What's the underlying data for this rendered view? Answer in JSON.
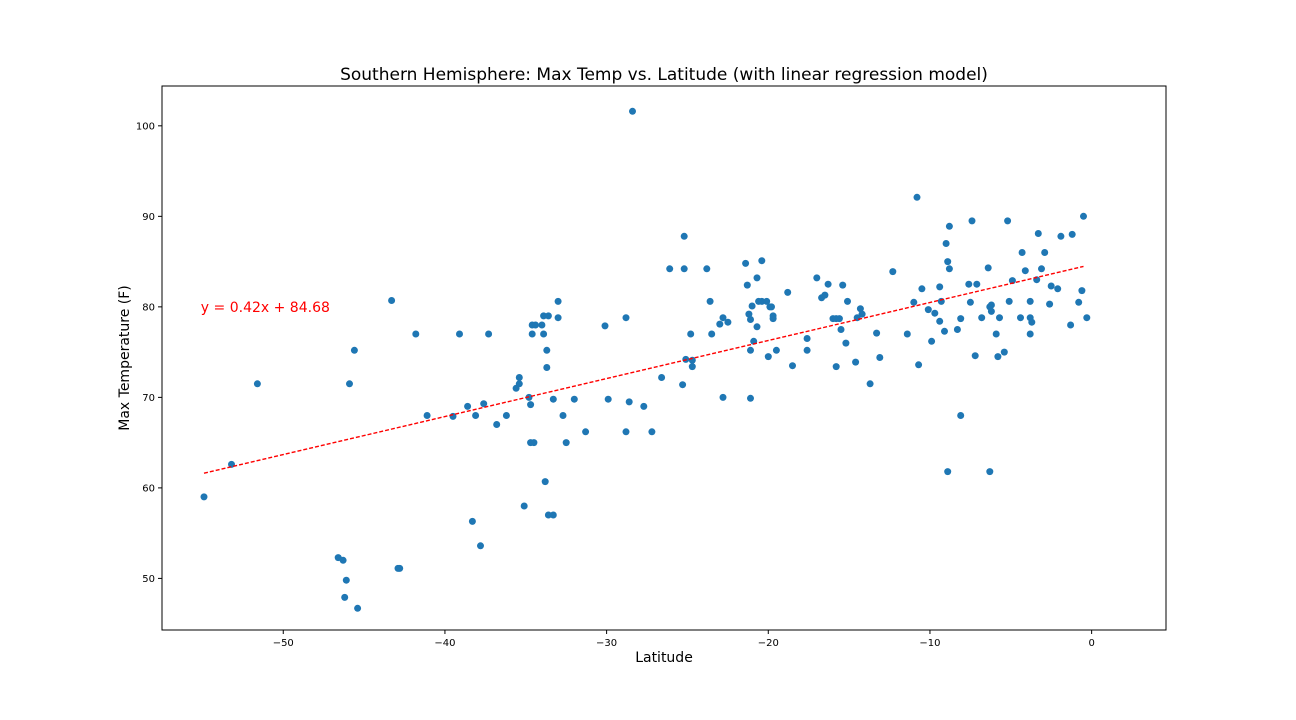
{
  "chart_data": {
    "type": "scatter",
    "title": "Southern Hemisphere:  Max Temp vs. Latitude (with linear regression model)",
    "xlabel": "Latitude",
    "ylabel": "Max Temperature (F)",
    "xlim": [
      -57.5,
      4.6
    ],
    "ylim": [
      44.3,
      104.4
    ],
    "xticks": [
      -50,
      -40,
      -30,
      -20,
      -10,
      0
    ],
    "yticks": [
      50,
      60,
      70,
      80,
      90,
      100
    ],
    "grid": false,
    "marker_color": "#1f77b4",
    "annotation": {
      "text": "y = 0.42x + 84.68",
      "color": "#ff0000",
      "x": -55.1,
      "y": 80.0
    },
    "regression": {
      "slope": 0.42,
      "intercept": 84.68,
      "x_range": [
        -54.9,
        -0.5
      ],
      "color": "#ff0000",
      "style": "dashed"
    },
    "points": [
      [
        -54.9,
        59.0
      ],
      [
        -53.2,
        62.6
      ],
      [
        -51.6,
        71.5
      ],
      [
        -46.6,
        52.3
      ],
      [
        -46.3,
        52.0
      ],
      [
        -46.2,
        47.9
      ],
      [
        -46.1,
        49.8
      ],
      [
        -45.9,
        71.5
      ],
      [
        -45.6,
        75.2
      ],
      [
        -45.4,
        46.7
      ],
      [
        -43.3,
        80.7
      ],
      [
        -42.9,
        51.1
      ],
      [
        -42.8,
        51.1
      ],
      [
        -41.8,
        77.0
      ],
      [
        -41.1,
        68.0
      ],
      [
        -39.5,
        67.9
      ],
      [
        -39.1,
        77.0
      ],
      [
        -38.6,
        69.0
      ],
      [
        -38.3,
        56.3
      ],
      [
        -38.1,
        68.0
      ],
      [
        -37.8,
        53.6
      ],
      [
        -37.6,
        69.3
      ],
      [
        -37.3,
        77.0
      ],
      [
        -36.8,
        67.0
      ],
      [
        -36.2,
        68.0
      ],
      [
        -35.6,
        71.0
      ],
      [
        -35.4,
        72.2
      ],
      [
        -35.4,
        71.5
      ],
      [
        -35.1,
        58.0
      ],
      [
        -34.8,
        70.0
      ],
      [
        -34.7,
        65.0
      ],
      [
        -34.7,
        69.2
      ],
      [
        -34.6,
        78.0
      ],
      [
        -34.6,
        77.0
      ],
      [
        -34.5,
        65.0
      ],
      [
        -34.4,
        78.0
      ],
      [
        -34.0,
        78.0
      ],
      [
        -33.9,
        79.0
      ],
      [
        -33.9,
        77.0
      ],
      [
        -33.8,
        60.7
      ],
      [
        -33.7,
        75.2
      ],
      [
        -33.7,
        73.3
      ],
      [
        -33.6,
        57.0
      ],
      [
        -33.6,
        79.0
      ],
      [
        -33.3,
        57.0
      ],
      [
        -33.3,
        69.8
      ],
      [
        -33.0,
        80.6
      ],
      [
        -33.0,
        78.8
      ],
      [
        -32.7,
        68.0
      ],
      [
        -32.5,
        65.0
      ],
      [
        -32.0,
        69.8
      ],
      [
        -31.3,
        66.2
      ],
      [
        -30.1,
        77.9
      ],
      [
        -29.9,
        69.8
      ],
      [
        -28.8,
        78.8
      ],
      [
        -28.8,
        66.2
      ],
      [
        -28.6,
        69.5
      ],
      [
        -28.4,
        101.6
      ],
      [
        -27.7,
        69.0
      ],
      [
        -27.2,
        66.2
      ],
      [
        -26.6,
        72.2
      ],
      [
        -26.1,
        84.2
      ],
      [
        -25.3,
        71.4
      ],
      [
        -25.2,
        87.8
      ],
      [
        -25.2,
        84.2
      ],
      [
        -25.1,
        74.2
      ],
      [
        -24.8,
        77.0
      ],
      [
        -24.7,
        74.1
      ],
      [
        -24.7,
        73.4
      ],
      [
        -23.8,
        84.2
      ],
      [
        -23.6,
        80.6
      ],
      [
        -23.5,
        77.0
      ],
      [
        -23.0,
        78.1
      ],
      [
        -22.8,
        78.8
      ],
      [
        -22.8,
        70.0
      ],
      [
        -22.5,
        78.3
      ],
      [
        -21.4,
        84.8
      ],
      [
        -21.3,
        82.4
      ],
      [
        -21.2,
        79.2
      ],
      [
        -21.1,
        78.6
      ],
      [
        -21.1,
        75.2
      ],
      [
        -21.1,
        69.9
      ],
      [
        -21.0,
        80.1
      ],
      [
        -20.9,
        76.2
      ],
      [
        -20.7,
        77.8
      ],
      [
        -20.7,
        83.2
      ],
      [
        -20.6,
        80.6
      ],
      [
        -20.4,
        80.6
      ],
      [
        -20.4,
        85.1
      ],
      [
        -20.1,
        80.6
      ],
      [
        -20.0,
        74.5
      ],
      [
        -19.9,
        80.0
      ],
      [
        -19.8,
        80.0
      ],
      [
        -19.7,
        79.0
      ],
      [
        -19.7,
        78.7
      ],
      [
        -19.5,
        75.2
      ],
      [
        -18.8,
        81.6
      ],
      [
        -18.5,
        73.5
      ],
      [
        -17.6,
        76.5
      ],
      [
        -17.6,
        75.2
      ],
      [
        -17.0,
        83.2
      ],
      [
        -16.7,
        81.0
      ],
      [
        -16.5,
        81.3
      ],
      [
        -16.3,
        82.5
      ],
      [
        -16.0,
        78.7
      ],
      [
        -15.8,
        78.7
      ],
      [
        -15.8,
        73.4
      ],
      [
        -15.6,
        78.7
      ],
      [
        -15.5,
        77.5
      ],
      [
        -15.4,
        82.4
      ],
      [
        -15.2,
        76.0
      ],
      [
        -15.1,
        80.6
      ],
      [
        -14.6,
        73.9
      ],
      [
        -14.5,
        78.8
      ],
      [
        -14.3,
        79.8
      ],
      [
        -14.2,
        79.2
      ],
      [
        -13.7,
        71.5
      ],
      [
        -13.3,
        77.1
      ],
      [
        -13.1,
        74.4
      ],
      [
        -12.3,
        83.9
      ],
      [
        -11.4,
        77.0
      ],
      [
        -11.0,
        80.5
      ],
      [
        -10.8,
        92.1
      ],
      [
        -10.7,
        73.6
      ],
      [
        -10.5,
        82.0
      ],
      [
        -10.1,
        79.7
      ],
      [
        -9.9,
        76.2
      ],
      [
        -9.7,
        79.3
      ],
      [
        -9.4,
        82.2
      ],
      [
        -9.4,
        78.4
      ],
      [
        -9.3,
        80.6
      ],
      [
        -9.1,
        77.3
      ],
      [
        -9.0,
        87.0
      ],
      [
        -8.9,
        85.0
      ],
      [
        -8.9,
        61.8
      ],
      [
        -8.8,
        88.9
      ],
      [
        -8.8,
        84.2
      ],
      [
        -8.3,
        77.5
      ],
      [
        -8.1,
        78.7
      ],
      [
        -8.1,
        68.0
      ],
      [
        -7.6,
        82.5
      ],
      [
        -7.5,
        80.5
      ],
      [
        -7.4,
        89.5
      ],
      [
        -7.2,
        74.6
      ],
      [
        -7.1,
        82.5
      ],
      [
        -6.8,
        78.8
      ],
      [
        -6.4,
        84.3
      ],
      [
        -6.3,
        80.0
      ],
      [
        -6.3,
        61.8
      ],
      [
        -6.2,
        79.5
      ],
      [
        -6.2,
        80.2
      ],
      [
        -5.9,
        77.0
      ],
      [
        -5.8,
        74.5
      ],
      [
        -5.7,
        78.8
      ],
      [
        -5.4,
        75.0
      ],
      [
        -5.2,
        89.5
      ],
      [
        -5.1,
        80.6
      ],
      [
        -4.9,
        82.9
      ],
      [
        -4.4,
        78.8
      ],
      [
        -4.3,
        86.0
      ],
      [
        -4.1,
        84.0
      ],
      [
        -3.8,
        80.6
      ],
      [
        -3.8,
        77.0
      ],
      [
        -3.8,
        78.8
      ],
      [
        -3.7,
        78.3
      ],
      [
        -3.4,
        83.0
      ],
      [
        -3.3,
        88.1
      ],
      [
        -3.1,
        84.2
      ],
      [
        -2.9,
        86.0
      ],
      [
        -2.6,
        80.3
      ],
      [
        -2.5,
        82.3
      ],
      [
        -2.1,
        82.0
      ],
      [
        -1.9,
        87.8
      ],
      [
        -1.3,
        78.0
      ],
      [
        -1.2,
        88.0
      ],
      [
        -0.8,
        80.5
      ],
      [
        -0.6,
        81.8
      ],
      [
        -0.5,
        90.0
      ],
      [
        -0.3,
        78.8
      ]
    ]
  }
}
